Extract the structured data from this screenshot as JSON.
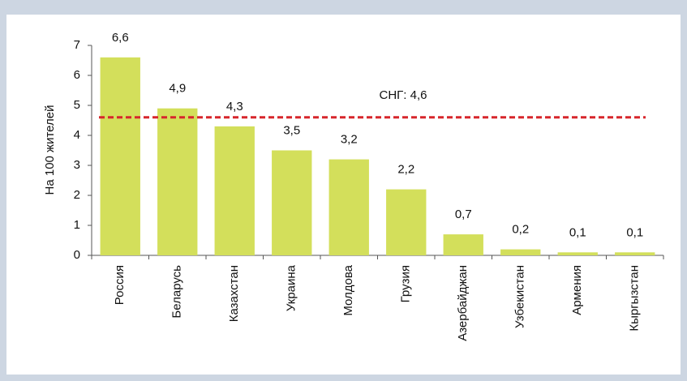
{
  "chart_data": {
    "type": "bar",
    "y_label": "На 100 жителей",
    "categories": [
      "Россия",
      "Беларусь",
      "Казахстан",
      "Украина",
      "Молдова",
      "Грузия",
      "Азербайджан",
      "Узбекистан",
      "Армения",
      "Кыргызстан"
    ],
    "values": [
      6.6,
      4.9,
      4.3,
      3.5,
      3.2,
      2.2,
      0.7,
      0.2,
      0.1,
      0.1
    ],
    "value_labels": [
      "6,6",
      "4,9",
      "4,3",
      "3,5",
      "3,2",
      "2,2",
      "0,7",
      "0,2",
      "0,1",
      "0,1"
    ],
    "color": "#d3df5b",
    "ylim": [
      0,
      7
    ],
    "yticks": [
      0,
      1,
      2,
      3,
      4,
      5,
      6,
      7
    ],
    "reference_line": {
      "value": 4.6,
      "label": "СНГ: 4,6",
      "color": "#d7262c"
    }
  }
}
